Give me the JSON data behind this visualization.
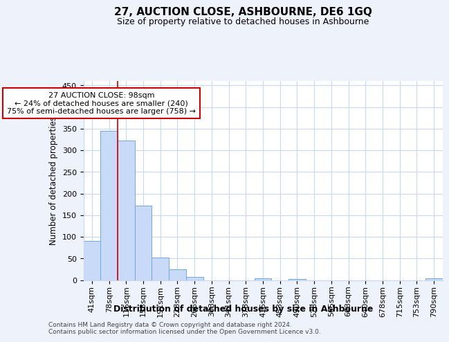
{
  "title": "27, AUCTION CLOSE, ASHBOURNE, DE6 1GQ",
  "subtitle": "Size of property relative to detached houses in Ashbourne",
  "xlabel": "Distribution of detached houses by size in Ashbourne",
  "ylabel": "Number of detached properties",
  "bar_labels": [
    "41sqm",
    "78sqm",
    "116sqm",
    "153sqm",
    "191sqm",
    "228sqm",
    "266sqm",
    "303sqm",
    "341sqm",
    "378sqm",
    "416sqm",
    "453sqm",
    "490sqm",
    "528sqm",
    "565sqm",
    "603sqm",
    "640sqm",
    "678sqm",
    "715sqm",
    "753sqm",
    "790sqm"
  ],
  "bar_values": [
    90,
    345,
    322,
    172,
    52,
    25,
    8,
    0,
    0,
    0,
    4,
    0,
    3,
    0,
    0,
    0,
    0,
    0,
    0,
    0,
    4
  ],
  "bar_color": "#c9daf8",
  "bar_edge_color": "#6fa8dc",
  "vline_x": 1.5,
  "vline_color": "#cc0000",
  "annotation_text": "27 AUCTION CLOSE: 98sqm\n← 24% of detached houses are smaller (240)\n75% of semi-detached houses are larger (758) →",
  "annotation_box_color": "white",
  "annotation_box_edge": "#cc0000",
  "ylim": [
    0,
    460
  ],
  "yticks": [
    0,
    50,
    100,
    150,
    200,
    250,
    300,
    350,
    400,
    450
  ],
  "footer": "Contains HM Land Registry data © Crown copyright and database right 2024.\nContains public sector information licensed under the Open Government Licence v3.0.",
  "bg_color": "#eef2fb",
  "plot_bg_color": "white",
  "grid_color": "#c8d8f0",
  "title_fontsize": 11,
  "subtitle_fontsize": 9,
  "ylabel_fontsize": 8.5,
  "xlabel_fontsize": 9,
  "tick_fontsize": 8,
  "footer_fontsize": 6.5
}
